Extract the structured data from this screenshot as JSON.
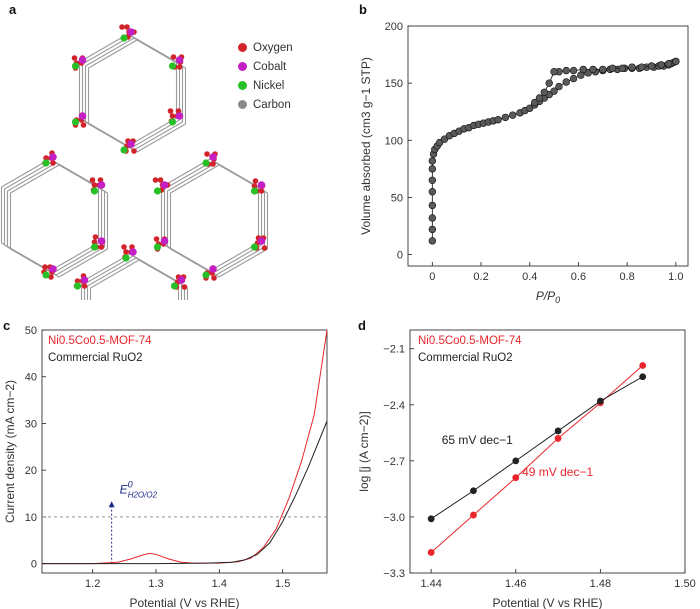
{
  "panels": {
    "a": {
      "label": "a",
      "legend": [
        {
          "name": "Oxygen",
          "color": "#d2232a"
        },
        {
          "name": "Cobalt",
          "color": "#c41fc4"
        },
        {
          "name": "Nickel",
          "color": "#27c027"
        },
        {
          "name": "Carbon",
          "color": "#8a8a8a"
        }
      ]
    },
    "b": {
      "label": "b"
    },
    "c": {
      "label": "c"
    },
    "d": {
      "label": "d"
    }
  },
  "chart_data": [
    {
      "panel": "b",
      "type": "scatter",
      "xlabel": "P/P0",
      "ylabel": "Volume absorbed (cm3 g−1 STP)",
      "xlim": [
        -0.1,
        1.05
      ],
      "ylim": [
        -10,
        200
      ],
      "xticks": [
        "0",
        "0.2",
        "0.4",
        "0.6",
        "0.8",
        "1.0"
      ],
      "yticks": [
        "0",
        "50",
        "100",
        "150",
        "200"
      ],
      "series": [
        {
          "style": "adsorption",
          "x": [
            0.0,
            0.0,
            0.0,
            0.0,
            0.0,
            0.0,
            0.0,
            0.0,
            0.005,
            0.01,
            0.02,
            0.03,
            0.05,
            0.07,
            0.09,
            0.11,
            0.13,
            0.15,
            0.17,
            0.19,
            0.21,
            0.23,
            0.25,
            0.27,
            0.3,
            0.33,
            0.36,
            0.38,
            0.4,
            0.42,
            0.44,
            0.46,
            0.48,
            0.5,
            0.52,
            0.55,
            0.58,
            0.61,
            0.64,
            0.67,
            0.7,
            0.73,
            0.76,
            0.79,
            0.82,
            0.85,
            0.88,
            0.91,
            0.93,
            0.95,
            0.97,
            0.98,
            0.99,
            1.0
          ],
          "y": [
            12,
            22,
            32,
            43,
            55,
            65,
            75,
            82,
            88,
            92,
            95,
            98,
            101,
            104,
            106,
            108,
            110,
            111,
            113,
            114,
            115,
            116,
            117,
            118,
            120,
            122,
            124,
            126,
            128,
            131,
            134,
            137,
            140,
            143,
            147,
            151,
            154,
            157,
            159,
            160,
            161,
            162,
            162,
            163,
            163,
            163,
            164,
            164,
            165,
            165,
            166,
            167,
            168,
            169
          ]
        },
        {
          "style": "desorption",
          "x": [
            1.0,
            0.97,
            0.94,
            0.9,
            0.86,
            0.82,
            0.78,
            0.74,
            0.7,
            0.66,
            0.62,
            0.58,
            0.55,
            0.52,
            0.5,
            0.48,
            0.46,
            0.44,
            0.42
          ],
          "y": [
            169,
            167,
            166,
            165,
            164,
            164,
            163,
            163,
            162,
            162,
            162,
            161,
            161,
            160,
            160,
            150,
            142,
            137,
            133
          ]
        }
      ]
    },
    {
      "panel": "c",
      "type": "line",
      "xlabel": "Potential (V vs RHE)",
      "ylabel": "Current density (mA cm−2)",
      "xlim": [
        1.12,
        1.57
      ],
      "ylim": [
        -2,
        50
      ],
      "xticks": [
        "1.2",
        "1.3",
        "1.4",
        "1.5"
      ],
      "yticks": [
        "0",
        "10",
        "20",
        "30",
        "40",
        "50"
      ],
      "annotation": {
        "text": "E0 H2O/O2",
        "x": 1.23,
        "y": 10
      },
      "reference_line_y": 10,
      "series": [
        {
          "name": "Ni0.5Co0.5-MOF-74",
          "color": "#e8262c",
          "x": [
            1.12,
            1.2,
            1.24,
            1.26,
            1.28,
            1.29,
            1.3,
            1.32,
            1.34,
            1.36,
            1.4,
            1.43,
            1.45,
            1.47,
            1.49,
            1.51,
            1.53,
            1.55,
            1.57
          ],
          "y": [
            0,
            0,
            0.3,
            1.0,
            1.9,
            2.2,
            2.0,
            1.0,
            0.3,
            0.1,
            0.1,
            0.4,
            1.2,
            3.5,
            7.5,
            14,
            22,
            32,
            50
          ]
        },
        {
          "name": "Commercial RuO2",
          "color": "#222222",
          "x": [
            1.12,
            1.2,
            1.3,
            1.38,
            1.42,
            1.44,
            1.46,
            1.48,
            1.5,
            1.52,
            1.54,
            1.57
          ],
          "y": [
            0,
            0,
            0,
            0.1,
            0.3,
            0.8,
            2.0,
            4.5,
            9,
            14.5,
            20.5,
            30.5
          ]
        }
      ]
    },
    {
      "panel": "d",
      "type": "line",
      "xlabel": "Potential (V vs RHE)",
      "ylabel": "log [j (A cm−2)]",
      "xlim": [
        1.435,
        1.5
      ],
      "ylim": [
        -3.3,
        -2.0
      ],
      "xticks": [
        "1.44",
        "1.46",
        "1.48",
        "1.50"
      ],
      "yticks": [
        "−2.1",
        "−2.4",
        "−2.7",
        "−3.0",
        "−3.3"
      ],
      "series": [
        {
          "name": "Ni0.5Co0.5-MOF-74",
          "color": "#e8262c",
          "x": [
            1.44,
            1.45,
            1.46,
            1.47,
            1.48,
            1.49
          ],
          "y": [
            -3.19,
            -2.99,
            -2.79,
            -2.58,
            -2.39,
            -2.19
          ],
          "slope_label": "49 mV dec−1"
        },
        {
          "name": "Commercial RuO2",
          "color": "#222222",
          "x": [
            1.44,
            1.45,
            1.46,
            1.47,
            1.48,
            1.49
          ],
          "y": [
            -3.01,
            -2.86,
            -2.7,
            -2.54,
            -2.38,
            -2.25
          ],
          "slope_label": "65 mV dec−1"
        }
      ]
    }
  ]
}
